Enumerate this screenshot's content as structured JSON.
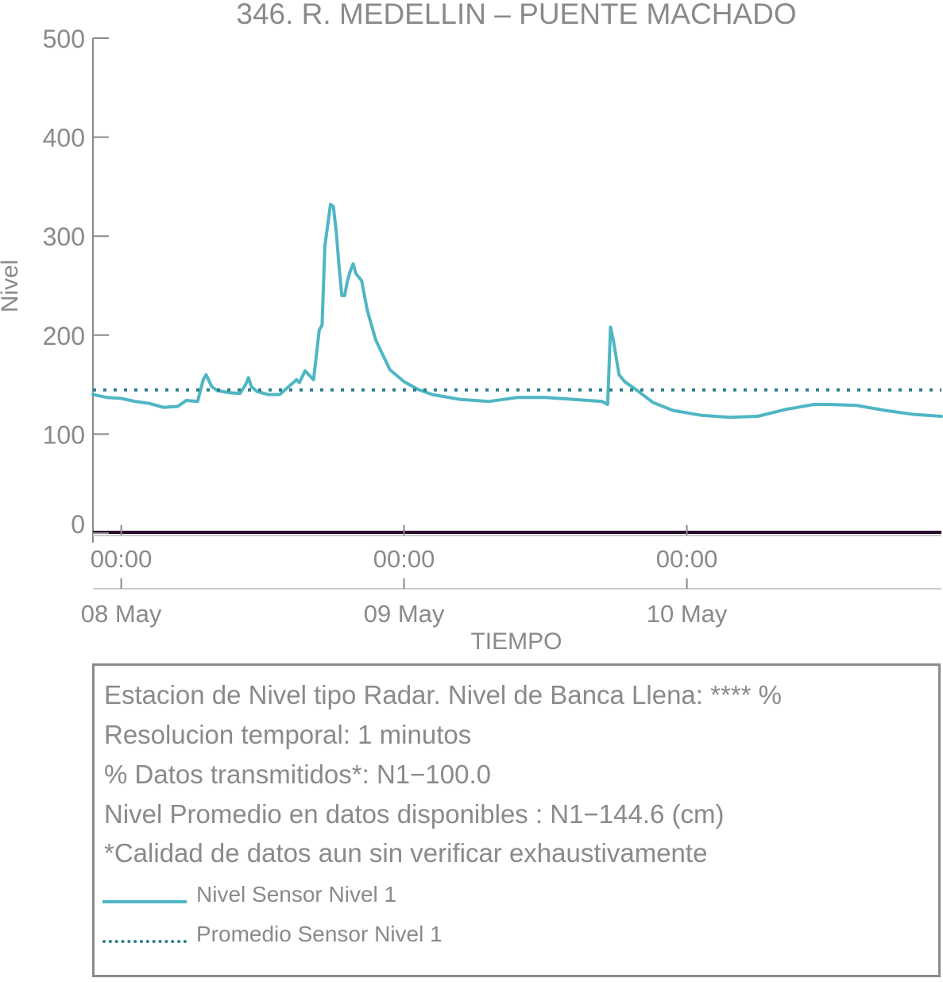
{
  "chart_data": {
    "type": "line",
    "title": "346. R. MEDELLIN – PUENTE MACHADO",
    "xlabel": "TIEMPO",
    "ylabel": "Nivel",
    "ylim": [
      0,
      500
    ],
    "yticks": [
      "0",
      "100",
      "200",
      "300",
      "400",
      "500"
    ],
    "xlim_days": [
      -0.1,
      2.9
    ],
    "xticks": [
      {
        "day": 0,
        "time": "00:00",
        "date": "08 May"
      },
      {
        "day": 1,
        "time": "00:00",
        "date": "09 May"
      },
      {
        "day": 2,
        "time": "00:00",
        "date": "10 May"
      }
    ],
    "grid": false,
    "series": [
      {
        "name": "Nivel Sensor Nivel 1",
        "style": "solid",
        "color": "#4fb6c3",
        "x_days": [
          -0.1,
          -0.05,
          0.0,
          0.05,
          0.1,
          0.15,
          0.2,
          0.23,
          0.27,
          0.29,
          0.3,
          0.32,
          0.34,
          0.38,
          0.42,
          0.44,
          0.45,
          0.46,
          0.48,
          0.52,
          0.56,
          0.6,
          0.62,
          0.63,
          0.65,
          0.68,
          0.7,
          0.71,
          0.72,
          0.74,
          0.75,
          0.76,
          0.77,
          0.78,
          0.79,
          0.8,
          0.81,
          0.82,
          0.83,
          0.85,
          0.87,
          0.9,
          0.95,
          1.0,
          1.05,
          1.1,
          1.2,
          1.3,
          1.4,
          1.5,
          1.6,
          1.7,
          1.72,
          1.73,
          1.74,
          1.76,
          1.78,
          1.82,
          1.88,
          1.95,
          2.05,
          2.15,
          2.25,
          2.35,
          2.45,
          2.5,
          2.6,
          2.7,
          2.8,
          2.9
        ],
        "values": [
          140,
          137,
          136,
          133,
          131,
          127,
          128,
          134,
          133,
          155,
          160,
          148,
          144,
          142,
          141,
          150,
          157,
          148,
          143,
          140,
          140,
          150,
          155,
          152,
          164,
          155,
          205,
          210,
          290,
          332,
          330,
          305,
          270,
          240,
          240,
          255,
          265,
          272,
          262,
          255,
          225,
          195,
          165,
          153,
          145,
          140,
          135,
          133,
          137,
          137,
          135,
          133,
          130,
          208,
          195,
          160,
          153,
          145,
          132,
          124,
          119,
          117,
          118,
          125,
          130,
          130,
          129,
          124,
          120,
          118
        ]
      },
      {
        "name": "Promedio Sensor Nivel 1",
        "style": "dotted",
        "color": "#2f7f8e",
        "x_days": [
          -0.1,
          2.9
        ],
        "values": [
          144.6,
          144.6
        ]
      }
    ]
  },
  "info": {
    "line1": "Estacion de Nivel tipo Radar. Nivel de Banca Llena: **** %",
    "line2": "Resolucion temporal: 1 minutos",
    "line3": "% Datos transmitidos*: N1−100.0",
    "line4": "Nivel Promedio en datos disponibles : N1−144.6 (cm)",
    "line5": "*Calidad de datos aun sin verificar exhaustivamente"
  },
  "legend": {
    "item1": "Nivel Sensor Nivel 1",
    "item2": "Promedio Sensor Nivel 1"
  },
  "colors": {
    "text": "#8a8a8a",
    "axis": "#8a8a8a",
    "level_line": "#4fb6c3",
    "mean_line": "#2f7f8e",
    "zero_line": "#2a0a2e"
  }
}
